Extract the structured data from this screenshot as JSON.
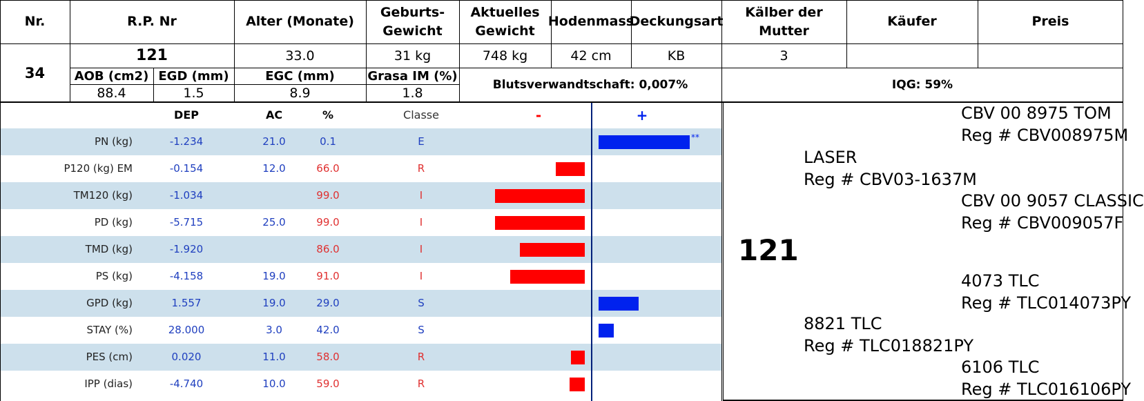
{
  "header": {
    "nr": "Nr.",
    "rp_nr": "R.P. Nr",
    "alter": "Alter (Monate)",
    "geburts_l1": "Geburts-",
    "geburts_l2": "Gewicht",
    "aktuelles_l1": "Aktuelles",
    "aktuelles_l2": "Gewicht",
    "hodenmass": "Hodenmass",
    "deckungsart": "Deckungsart",
    "kaelber_l1": "Kälber der",
    "kaelber_l2": "Mutter",
    "kaeufer": "Käufer",
    "preis": "Preis"
  },
  "animal": {
    "nr": "34",
    "rp_nr": "121",
    "alter": "33.0",
    "geburtsgewicht": "31 kg",
    "aktuelles_gewicht": "748 kg",
    "hodenmass": "42 cm",
    "deckungsart": "KB",
    "kaelber": "3",
    "kaeufer": "",
    "preis": ""
  },
  "carcass": {
    "aob_label": "AOB (cm2)",
    "egd_label": "EGD (mm)",
    "egc_label": "EGC (mm)",
    "grasa_label": "Grasa IM (%)",
    "aob": "88.4",
    "egd": "1.5",
    "egc": "8.9",
    "grasa": "1.8",
    "blutsverwandtschaft": "Blutsverwandtschaft: 0,007%",
    "iqg": "IQG: 59%"
  },
  "epd_header": {
    "dep": "DEP",
    "ac": "AC",
    "pct": "%",
    "classe": "Classe",
    "minus": "-",
    "plus": "+"
  },
  "colors": {
    "blue_text": "#1f3fbf",
    "red_text": "#e03030",
    "bar_red": "#ff0000",
    "bar_blue": "#0022ee",
    "row_shade": "#cde0ec"
  },
  "traits": [
    {
      "name": "PN (kg)",
      "dep": "-1.234",
      "ac": "21.0",
      "pct": "0.1",
      "classe": "E",
      "bar": 0.66,
      "mark": "**"
    },
    {
      "name": "P120 (kg) EM",
      "dep": "-0.154",
      "ac": "12.0",
      "pct": "66.0",
      "classe": "R",
      "bar": -0.21,
      "mark": ""
    },
    {
      "name": "TM120 (kg)",
      "dep": "-1.034",
      "ac": "",
      "pct": "99.0",
      "classe": "I",
      "bar": -0.65,
      "mark": ""
    },
    {
      "name": "PD (kg)",
      "dep": "-5.715",
      "ac": "25.0",
      "pct": "99.0",
      "classe": "I",
      "bar": -0.65,
      "mark": ""
    },
    {
      "name": "TMD (kg)",
      "dep": "-1.920",
      "ac": "",
      "pct": "86.0",
      "classe": "I",
      "bar": -0.47,
      "mark": ""
    },
    {
      "name": "PS (kg)",
      "dep": "-4.158",
      "ac": "19.0",
      "pct": "91.0",
      "classe": "I",
      "bar": -0.54,
      "mark": ""
    },
    {
      "name": "GPD (kg)",
      "dep": "1.557",
      "ac": "19.0",
      "pct": "29.0",
      "classe": "S",
      "bar": 0.29,
      "mark": ""
    },
    {
      "name": "STAY (%)",
      "dep": "28.000",
      "ac": "3.0",
      "pct": "42.0",
      "classe": "S",
      "bar": 0.11,
      "mark": ""
    },
    {
      "name": "PES (cm)",
      "dep": "0.020",
      "ac": "11.0",
      "pct": "58.0",
      "classe": "R",
      "bar": -0.1,
      "mark": ""
    },
    {
      "name": "IPP (dias)",
      "dep": "-4.740",
      "ac": "10.0",
      "pct": "59.0",
      "classe": "R",
      "bar": -0.11,
      "mark": ""
    }
  ],
  "pedigree": {
    "animal": "121",
    "sire": {
      "name": "LASER",
      "reg": "Reg # CBV03-1637M"
    },
    "sire_sire": {
      "name": "CBV 00 8975 TOM",
      "reg": "Reg # CBV008975M"
    },
    "sire_dam": {
      "name": "CBV 00 9057 CLASSIC",
      "reg": "Reg # CBV009057F"
    },
    "dam": {
      "name": "8821 TLC",
      "reg": "Reg # TLC018821PY"
    },
    "dam_sire": {
      "name": "4073 TLC",
      "reg": "Reg # TLC014073PY"
    },
    "dam_dam": {
      "name": "6106 TLC",
      "reg": "Reg # TLC016106PY"
    }
  }
}
